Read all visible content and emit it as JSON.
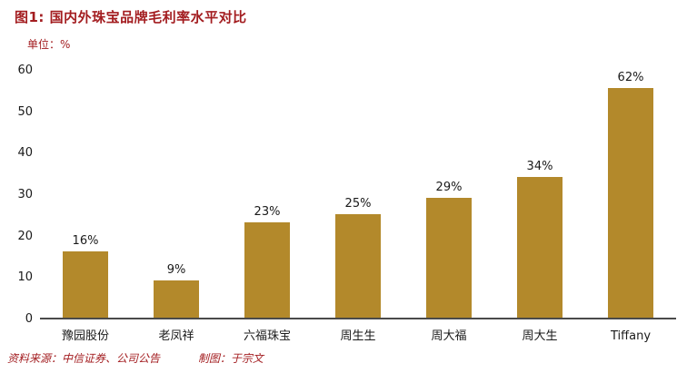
{
  "title": "图1: 国内外珠宝品牌毛利率水平对比",
  "unit_label": "单位：%",
  "footer": {
    "source": "资料来源：中信证券、公司公告",
    "credit": "制图：于宗文"
  },
  "colors": {
    "bar": "#B3892B",
    "accent_red": "#A31D20",
    "axis_line": "#4a4a4a",
    "text": "#1a1a1a"
  },
  "chart_data": {
    "type": "bar",
    "title": "图1: 国内外珠宝品牌毛利率水平对比",
    "categories": [
      "豫园股份",
      "老凤祥",
      "六福珠宝",
      "周生生",
      "周大福",
      "周大生",
      "Tiffany"
    ],
    "values": [
      16,
      9,
      23,
      25,
      29,
      34,
      62
    ],
    "data_labels": [
      "16%",
      "9%",
      "23%",
      "25%",
      "29%",
      "34%",
      "62%"
    ],
    "xlabel": "",
    "ylabel": "单位：%",
    "ylim": [
      0,
      60
    ],
    "yticks": [
      0,
      10,
      20,
      30,
      40,
      50,
      60
    ],
    "grid": false,
    "legend_position": "none"
  }
}
